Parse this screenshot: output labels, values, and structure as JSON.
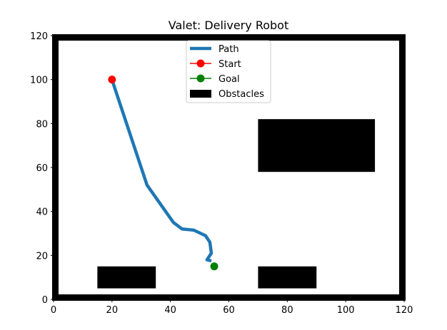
{
  "chart_data": {
    "type": "line",
    "title": "Valet: Delivery Robot",
    "xlim": [
      0,
      120
    ],
    "ylim": [
      0,
      120
    ],
    "x_ticks": [
      0,
      20,
      40,
      60,
      80,
      100,
      120
    ],
    "y_ticks": [
      0,
      20,
      40,
      60,
      80,
      100,
      120
    ],
    "grid": false,
    "legend_position": "upper center",
    "legend": [
      {
        "label": "Path",
        "kind": "line",
        "color": "#1f77b4"
      },
      {
        "label": "Start",
        "kind": "marker-line",
        "color": "#ff0000"
      },
      {
        "label": "Goal",
        "kind": "marker-line",
        "color": "#008000"
      },
      {
        "label": "Obstacles",
        "kind": "patch",
        "color": "#000000"
      }
    ],
    "path": {
      "name": "Path",
      "color": "#1f77b4",
      "x": [
        20,
        32,
        41,
        44,
        48,
        52,
        53.5,
        54,
        53,
        52.5,
        54
      ],
      "y": [
        100,
        52,
        35,
        32,
        31.5,
        29,
        26,
        21,
        19,
        18,
        17.5
      ]
    },
    "start": {
      "x": 20,
      "y": 100,
      "color": "#ff0000"
    },
    "goal": {
      "x": 55,
      "y": 15,
      "color": "#008000"
    },
    "boundary": {
      "x0": 0,
      "y0": 0,
      "x1": 120,
      "y1": 120,
      "color": "#000000"
    },
    "obstacles": [
      {
        "x0": 70,
        "y0": 58,
        "x1": 110,
        "y1": 82
      },
      {
        "x0": 15,
        "y0": 5,
        "x1": 35,
        "y1": 15
      },
      {
        "x0": 70,
        "y0": 5,
        "x1": 90,
        "y1": 15
      }
    ]
  }
}
